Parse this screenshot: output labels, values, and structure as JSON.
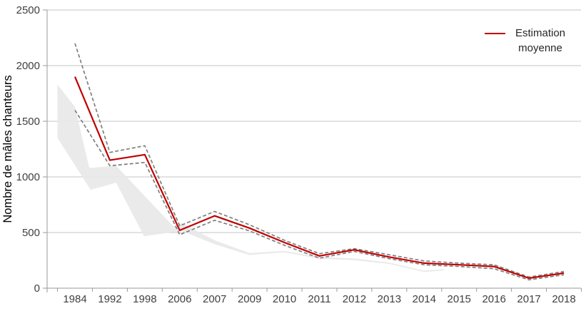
{
  "chart_data": {
    "type": "line",
    "title": "",
    "xlabel": "",
    "ylabel": "Nombre de mâles chanteurs",
    "ylim": [
      0,
      2500
    ],
    "yticks": [
      "0",
      "500",
      "1000",
      "1500",
      "2000",
      "2500"
    ],
    "ytick_values": [
      0,
      500,
      1000,
      1500,
      2000,
      2500
    ],
    "grid": "horizontal",
    "categories": [
      "1984",
      "1992",
      "1998",
      "2006",
      "2007",
      "2009",
      "2010",
      "2011",
      "2012",
      "2013",
      "2014",
      "2015",
      "2016",
      "2017",
      "2018"
    ],
    "legend": {
      "position": "top-right",
      "label": "Estimation moyenne",
      "color": "#c00000"
    },
    "series": [
      {
        "id": "estimation-moyenne",
        "legend_label": "Estimation moyenne",
        "style": "solid",
        "color": "#c00000",
        "values": [
          1900,
          1150,
          1200,
          520,
          650,
          540,
          410,
          290,
          345,
          280,
          225,
          210,
          195,
          90,
          135
        ]
      },
      {
        "id": "intervalle-superieur",
        "style": "dashed",
        "color": "#7f7f7f",
        "values": [
          2200,
          1220,
          1280,
          560,
          690,
          570,
          430,
          310,
          355,
          300,
          245,
          225,
          210,
          100,
          150
        ]
      },
      {
        "id": "intervalle-inferieur",
        "style": "dashed",
        "color": "#7f7f7f",
        "values": [
          1600,
          1100,
          1130,
          480,
          610,
          515,
          385,
          270,
          330,
          265,
          210,
          195,
          175,
          75,
          120
        ]
      }
    ],
    "grey_band": {
      "id": "bande-grise-estimation-anterieure",
      "color": "#e8e8e8",
      "upper": [
        [
          -0.5,
          1830
        ],
        [
          0,
          1630
        ],
        [
          0.41,
          1080
        ],
        [
          1.18,
          1100
        ],
        [
          2.82,
          555
        ],
        [
          3.06,
          585
        ],
        [
          4,
          430
        ],
        [
          5,
          315
        ],
        [
          6,
          335
        ],
        [
          7,
          280
        ],
        [
          8,
          268
        ],
        [
          9,
          230
        ],
        [
          10,
          158
        ],
        [
          10.57,
          172
        ]
      ],
      "lower": [
        [
          -0.5,
          1350
        ],
        [
          0.45,
          884
        ],
        [
          1.18,
          948
        ],
        [
          1.98,
          467
        ],
        [
          3.06,
          515
        ],
        [
          4,
          395
        ],
        [
          5,
          298
        ],
        [
          6,
          322
        ],
        [
          7,
          265
        ],
        [
          8,
          252
        ],
        [
          9,
          218
        ],
        [
          10,
          145
        ],
        [
          10.57,
          160
        ]
      ]
    },
    "colors": {
      "grid": "#c6c6c6",
      "axis": "#9a9a9a",
      "tick_label": "#3f3f3f",
      "axis_title": "#000000"
    }
  }
}
